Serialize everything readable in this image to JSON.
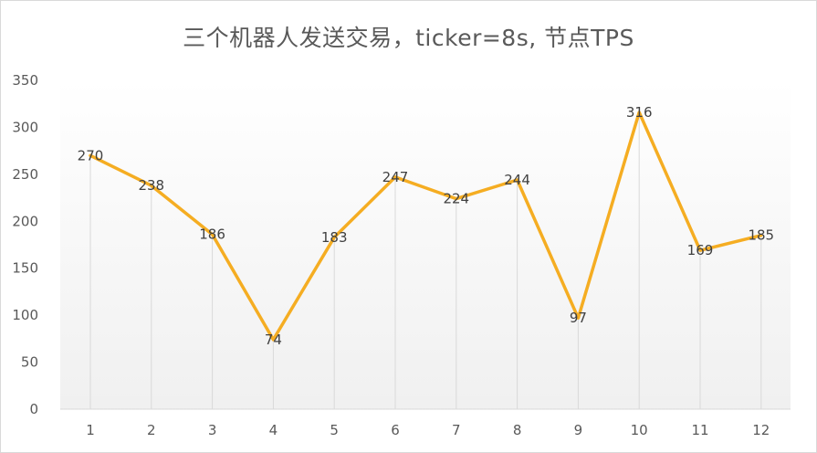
{
  "chart_data": {
    "type": "line",
    "title": "三个机器人发送交易，ticker=8s, 节点TPS",
    "xlabel": "",
    "ylabel": "",
    "categories": [
      "1",
      "2",
      "3",
      "4",
      "5",
      "6",
      "7",
      "8",
      "9",
      "10",
      "11",
      "12"
    ],
    "series": [
      {
        "values": [
          270,
          238,
          186,
          74,
          183,
          247,
          224,
          244,
          97,
          316,
          169,
          185
        ]
      }
    ],
    "ylim": [
      0,
      350
    ],
    "yticks": [
      0,
      50,
      100,
      150,
      200,
      250,
      300,
      350
    ],
    "grid": "vertical drop lines",
    "legend": "none",
    "data_labels": true,
    "colors": {
      "line": "#f5ad22",
      "droplines": "#d9d9d9",
      "plot_bg_bottom": "#f0f0f0"
    }
  }
}
